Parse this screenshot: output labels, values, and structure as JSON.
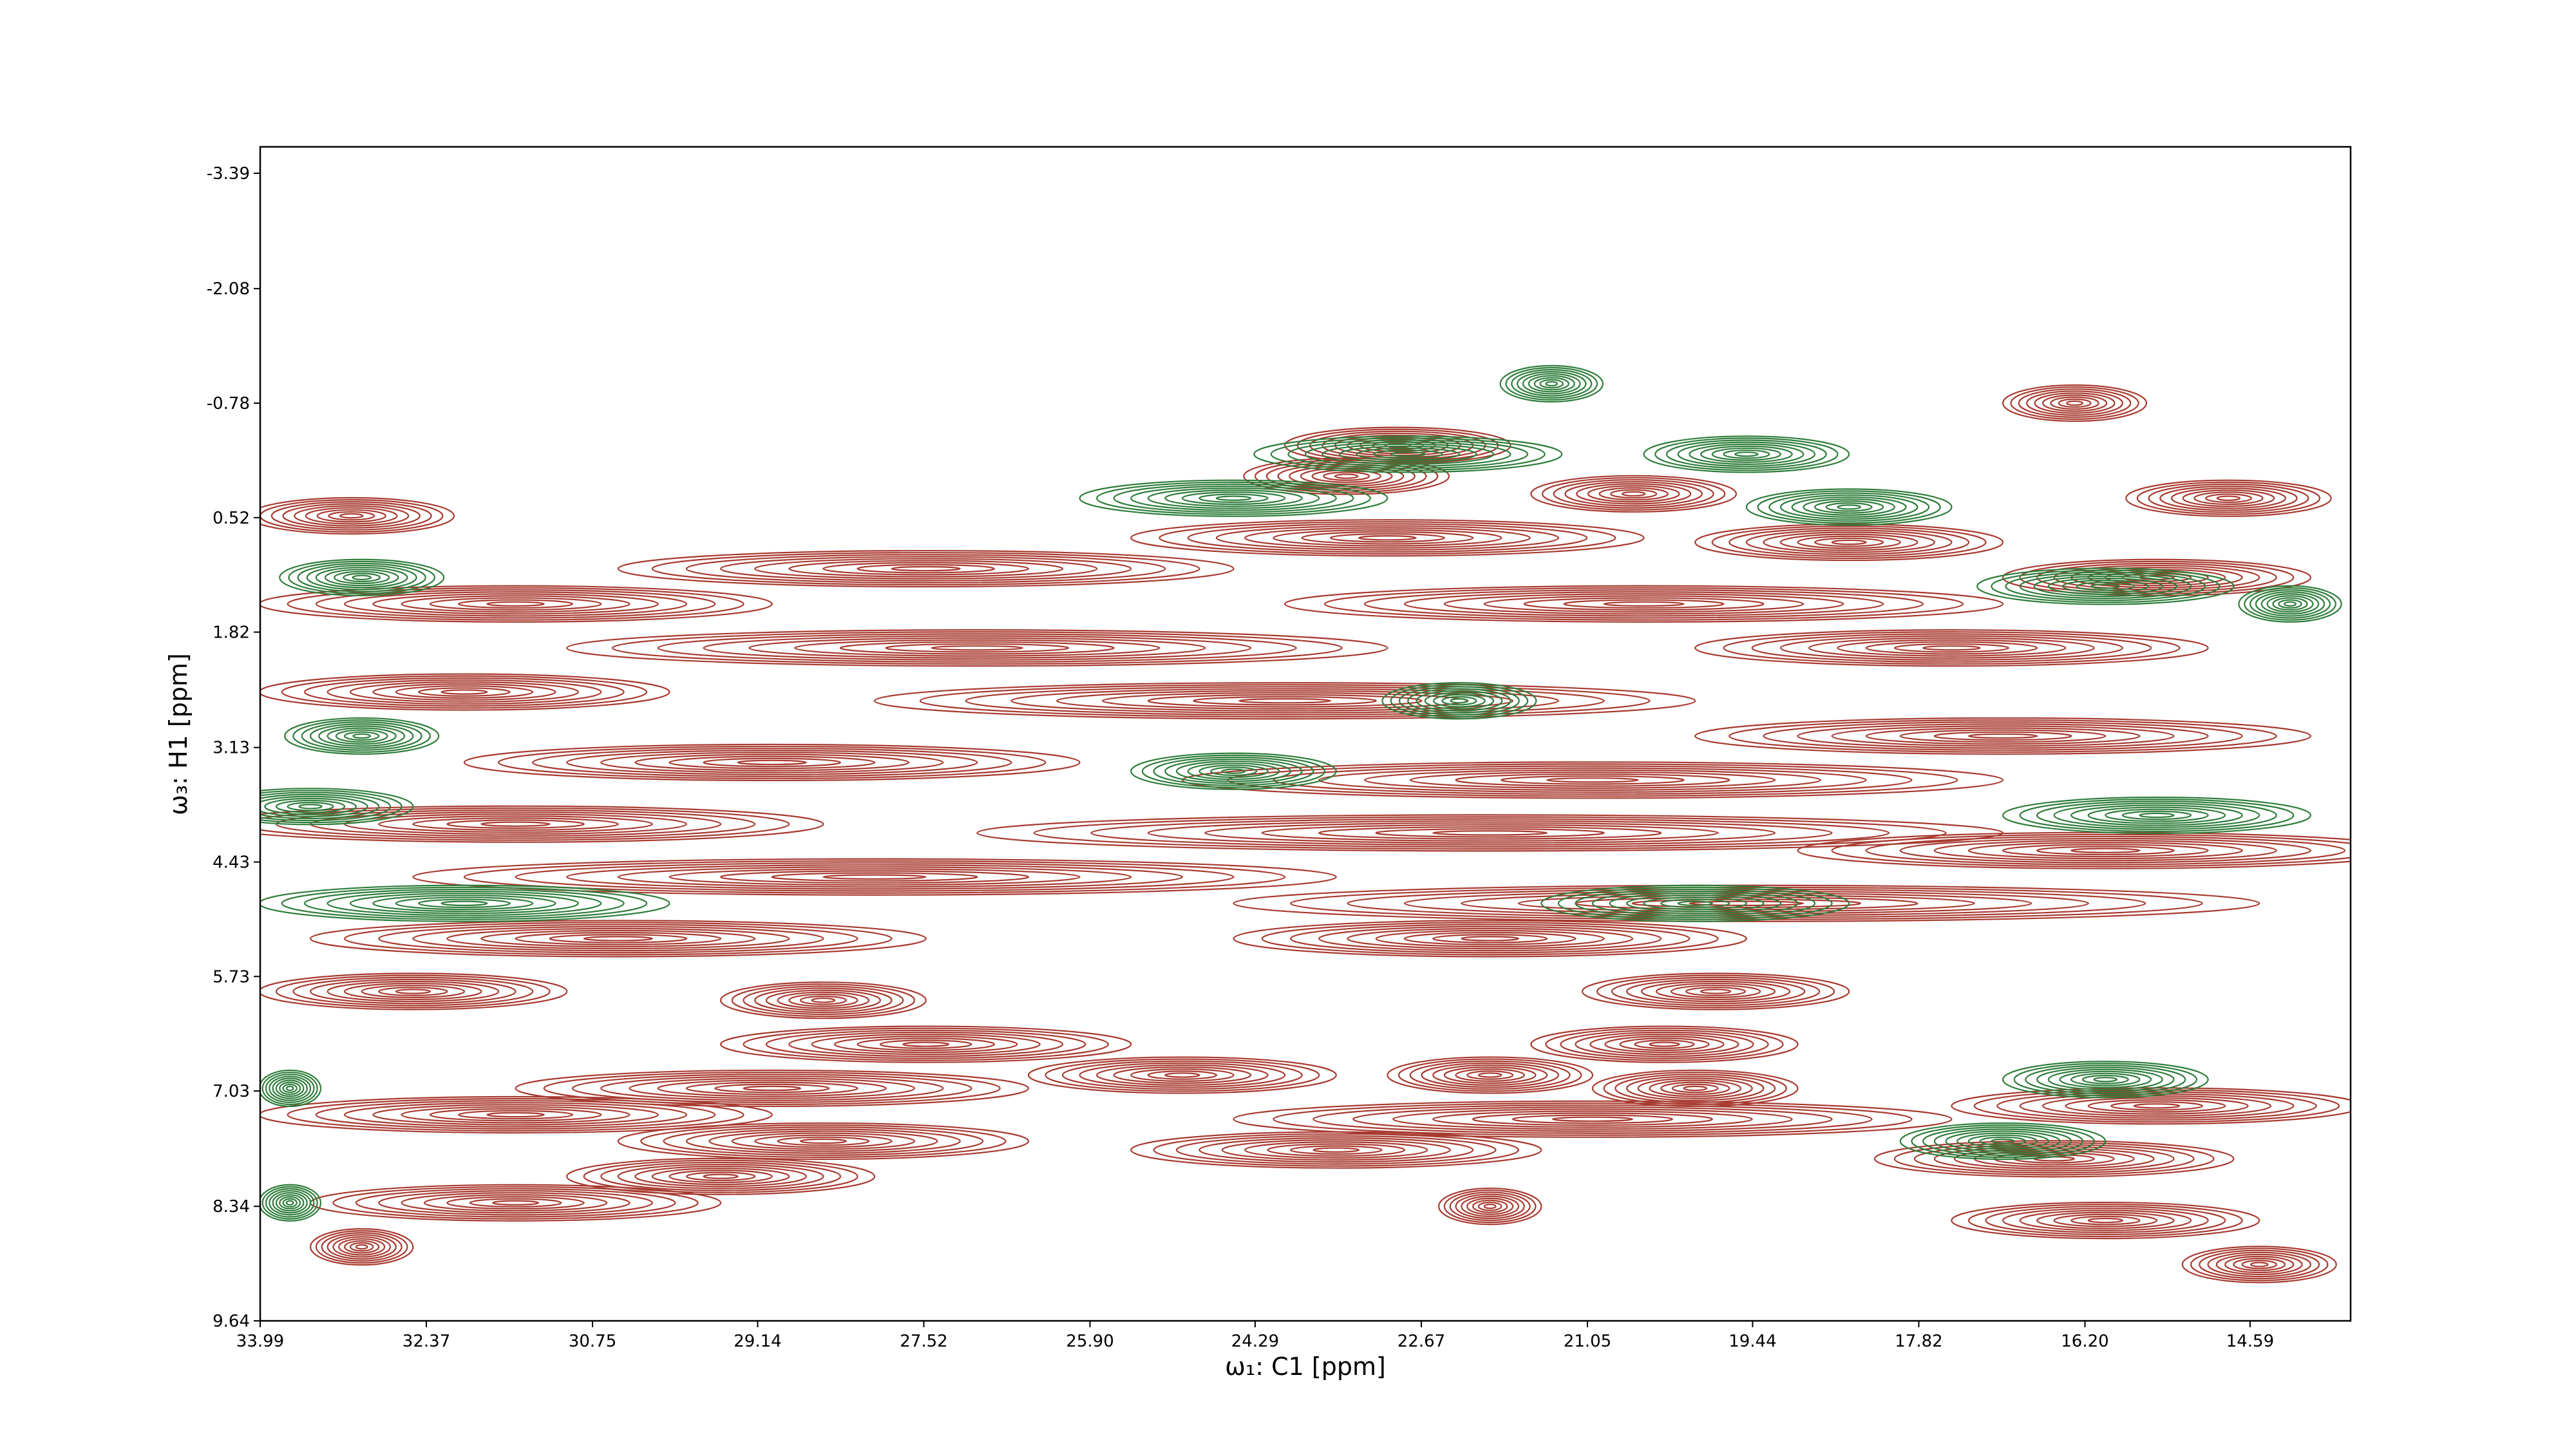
{
  "chart_data": {
    "type": "contour",
    "xlabel": "ω₁: C1 [ppm]",
    "ylabel": "ω₃: H1 [ppm]",
    "xlim": [
      33.99,
      13.61
    ],
    "ylim": [
      9.64,
      -3.69
    ],
    "xticks": [
      33.99,
      32.37,
      30.75,
      29.14,
      27.52,
      {
        "value": 25.9,
        "label": "25.90"
      },
      24.29,
      22.67,
      21.05,
      19.44,
      17.82,
      {
        "value": 16.2,
        "label": "16.20"
      },
      14.59
    ],
    "yticks": [
      -3.39,
      -2.08,
      -0.78,
      0.52,
      1.82,
      3.13,
      4.43,
      5.73,
      7.03,
      8.34,
      9.64
    ],
    "series": [
      {
        "color": "#a83a30",
        "x": [
          16.3,
          22.9,
          23.4,
          20.6,
          14.8,
          33.1,
          23.0,
          18.5,
          15.5,
          27.5,
          31.5,
          20.5,
          27.0,
          17.5,
          32.0,
          24.0,
          17.0,
          29.0,
          21.0,
          31.5,
          22.0,
          16.0,
          28.0,
          19.5,
          30.5,
          22.0,
          32.5,
          28.5,
          19.8,
          27.5,
          20.3,
          25.0,
          22.0,
          20.0,
          29.0,
          31.5,
          21.0,
          15.5,
          23.5,
          28.5,
          29.5,
          16.5,
          31.5,
          16.0,
          22.0,
          14.5,
          33.0
        ],
        "y": [
          -0.78,
          -0.3,
          0.05,
          0.25,
          0.3,
          0.5,
          0.75,
          0.8,
          1.2,
          1.1,
          1.5,
          1.5,
          2.0,
          2.0,
          2.5,
          2.6,
          3.0,
          3.3,
          3.5,
          4.0,
          4.1,
          4.3,
          4.6,
          4.9,
          5.3,
          5.3,
          5.9,
          6.0,
          5.9,
          6.5,
          6.5,
          6.85,
          6.85,
          7.0,
          7.0,
          7.3,
          7.35,
          7.2,
          7.7,
          7.6,
          8.0,
          7.8,
          8.3,
          8.5,
          8.34,
          9.0,
          8.8
        ],
        "width": [
          1.4,
          2.2,
          2.0,
          2.0,
          2.0,
          2.0,
          5.0,
          3.0,
          3.0,
          6.0,
          5.0,
          7.0,
          8.0,
          5.0,
          4.0,
          8.0,
          6.0,
          6.0,
          8.0,
          6.0,
          10.0,
          6.0,
          9.0,
          10.0,
          6.0,
          5.0,
          3.0,
          2.0,
          2.6,
          4.0,
          2.6,
          3.0,
          2.0,
          2.0,
          5.0,
          5.0,
          7.0,
          4.0,
          4.0,
          4.0,
          3.0,
          3.5,
          4.0,
          3.0,
          1.0,
          1.5,
          1.0
        ]
      },
      {
        "color": "#2e7d3a",
        "x": [
          21.4,
          22.8,
          19.5,
          24.5,
          18.5,
          33.0,
          16.0,
          14.2,
          22.3,
          33.0,
          24.5,
          33.5,
          15.5,
          32.0,
          20.0,
          16.0,
          33.7,
          17.0,
          33.7
        ],
        "y": [
          -1.0,
          -0.2,
          -0.2,
          0.3,
          0.4,
          1.2,
          1.3,
          1.5,
          2.6,
          3.0,
          3.4,
          3.8,
          3.9,
          4.9,
          4.9,
          6.9,
          7.0,
          7.6,
          8.3
        ],
        "width": [
          1.0,
          3.0,
          2.0,
          3.0,
          2.0,
          1.6,
          2.5,
          1.0,
          1.5,
          1.5,
          2.0,
          2.0,
          3.0,
          4.0,
          3.0,
          2.0,
          0.6,
          2.0,
          0.6
        ]
      }
    ]
  }
}
